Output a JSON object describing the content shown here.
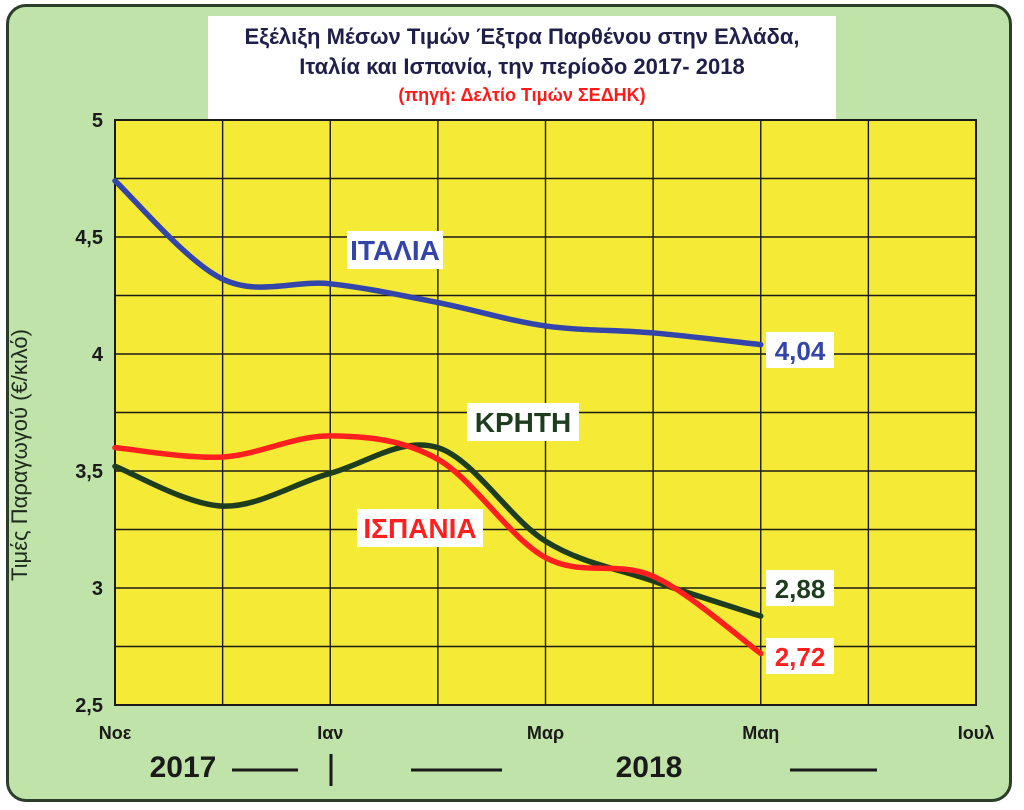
{
  "title": {
    "line1": "Εξέλιξη Μέσων Τιμών Έξτρα Παρθένου στην Ελλάδα,",
    "line2": "Ιταλία και Ισπανία, την περίοδο 2017- 2018",
    "source": "(πηγή: Δελτίο Τιμών ΣΕΔΗΚ)"
  },
  "colors": {
    "frame": "#bfe3a8",
    "plot": "#f5ea35",
    "grid": "#1a1a1a",
    "italy": "#3344aa",
    "crete": "#1e3d1e",
    "spain": "#ff1f1f"
  },
  "chart_data": {
    "type": "line",
    "ylabel": "Τιμές Παραγωγού (€/κιλό)",
    "xlabel": "",
    "ylim": [
      2.5,
      5
    ],
    "yticks": [
      "5",
      "4,5",
      "4",
      "3,5",
      "3",
      "2,5"
    ],
    "x_ticks": [
      "Νοε",
      "Ιαν",
      "Μαρ",
      "Μαη",
      "Ιουλ"
    ],
    "grid": true,
    "years": [
      "2017",
      "2018"
    ],
    "series": [
      {
        "name": "ΙΤΑΛΙΑ",
        "points": [
          [
            0,
            4.74
          ],
          [
            1,
            4.32
          ],
          [
            2,
            4.3
          ],
          [
            3,
            4.22
          ],
          [
            4,
            4.12
          ],
          [
            5,
            4.09
          ],
          [
            6,
            4.04
          ]
        ],
        "end_label": "4,04"
      },
      {
        "name": "ΚΡΗΤΗ",
        "points": [
          [
            0,
            3.52
          ],
          [
            1,
            3.35
          ],
          [
            2,
            3.49
          ],
          [
            3,
            3.6
          ],
          [
            4,
            3.2
          ],
          [
            5,
            3.03
          ],
          [
            6,
            2.88
          ]
        ],
        "end_label": "2,88"
      },
      {
        "name": "ΙΣΠΑΝΙΑ",
        "points": [
          [
            0,
            3.6
          ],
          [
            1,
            3.56
          ],
          [
            2,
            3.65
          ],
          [
            3,
            3.55
          ],
          [
            4,
            3.13
          ],
          [
            5,
            3.05
          ],
          [
            6,
            2.72
          ]
        ],
        "end_label": "2,72"
      }
    ]
  }
}
